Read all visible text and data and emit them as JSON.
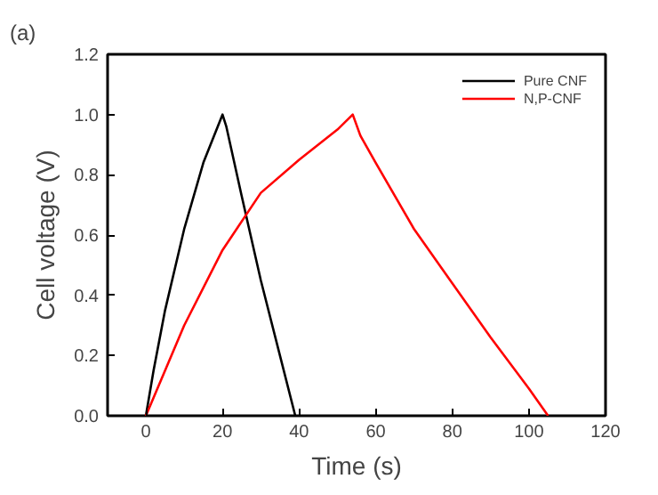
{
  "chart_data": {
    "type": "line",
    "xlabel": "Time (s)",
    "ylabel": "Cell voltage (V)",
    "annotations": [
      "(a)"
    ],
    "xlim": [
      -10,
      120
    ],
    "xticks": [
      0,
      20,
      40,
      60,
      80,
      100,
      120
    ],
    "ylim": [
      0,
      1.2
    ],
    "yticks": [
      {
        "value": 0,
        "label": "0.0"
      },
      0.2,
      0.4,
      0.6,
      0.8,
      {
        "value": 1,
        "label": "1.0"
      },
      1.2
    ],
    "legend": "top right",
    "grid": false,
    "line_style": "solid",
    "series": [
      {
        "name": "Pure CNF",
        "color": "#000000",
        "x": [
          0,
          2,
          5,
          10,
          15,
          20,
          21,
          25,
          30,
          35,
          39
        ],
        "values": [
          0,
          0.15,
          0.35,
          0.62,
          0.84,
          1.0,
          0.96,
          0.73,
          0.45,
          0.2,
          0
        ]
      },
      {
        "name": "N,P-CNF",
        "color": "#ff0000",
        "x": [
          0,
          10,
          20,
          30,
          40,
          50,
          54,
          56,
          60,
          70,
          80,
          90,
          100,
          105
        ],
        "values": [
          0,
          0.3,
          0.55,
          0.74,
          0.85,
          0.95,
          1.0,
          0.93,
          0.84,
          0.62,
          0.44,
          0.26,
          0.09,
          0
        ]
      }
    ]
  }
}
